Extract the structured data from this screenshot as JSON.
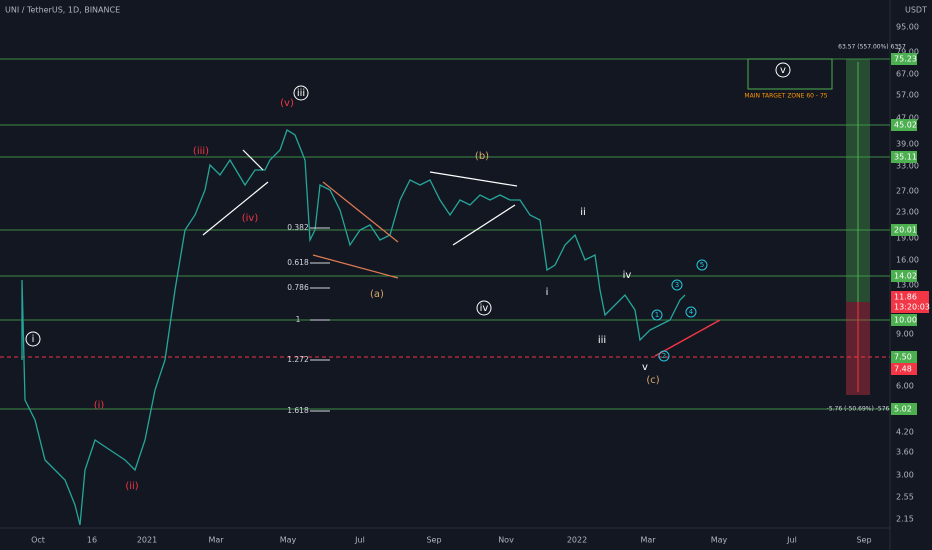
{
  "header": {
    "title": "UNI / TetherUS, 1D, BINANCE",
    "currency": "USDT"
  },
  "price_scale": [
    "95.00",
    "79.00",
    "67.00",
    "57.00",
    "47.00",
    "39.00",
    "33.00",
    "27.00",
    "23.00",
    "19.00",
    "16.00",
    "13.00",
    "9.00",
    "6.00",
    "4.20",
    "3.60",
    "3.00",
    "2.55",
    "2.15"
  ],
  "level_labels": [
    "75.23",
    "45.02",
    "35.11",
    "20.01",
    "14.02",
    "10.00",
    "7.50",
    "5.02"
  ],
  "live_price": "11.86",
  "countdown": "13:20:03",
  "stop_price": "7.48",
  "time_axis": [
    "Oct",
    "16",
    "2021",
    "Mar",
    "May",
    "Jul",
    "Sep",
    "Nov",
    "2022",
    "Mar",
    "May",
    "Jul",
    "Sep"
  ],
  "fib_levels": [
    "0.382",
    "0.618",
    "0.786",
    "1",
    "1.272",
    "1.618"
  ],
  "wave_labels": [
    "(v)",
    "iii",
    "(iii)",
    "(iv)",
    "(b)",
    "(a)",
    "iv",
    "ii",
    "i",
    "iv",
    "iii",
    "v",
    "(c)",
    "(i)",
    "(ii)",
    "i",
    "v",
    "1",
    "2",
    "3",
    "4",
    "5"
  ],
  "target_label": "MAIN TARGET ZONE 60 - 75",
  "target_measure": "63.57 (557.00%) 6357",
  "stop_measure": "-5.76 (-50.69%) -576"
}
